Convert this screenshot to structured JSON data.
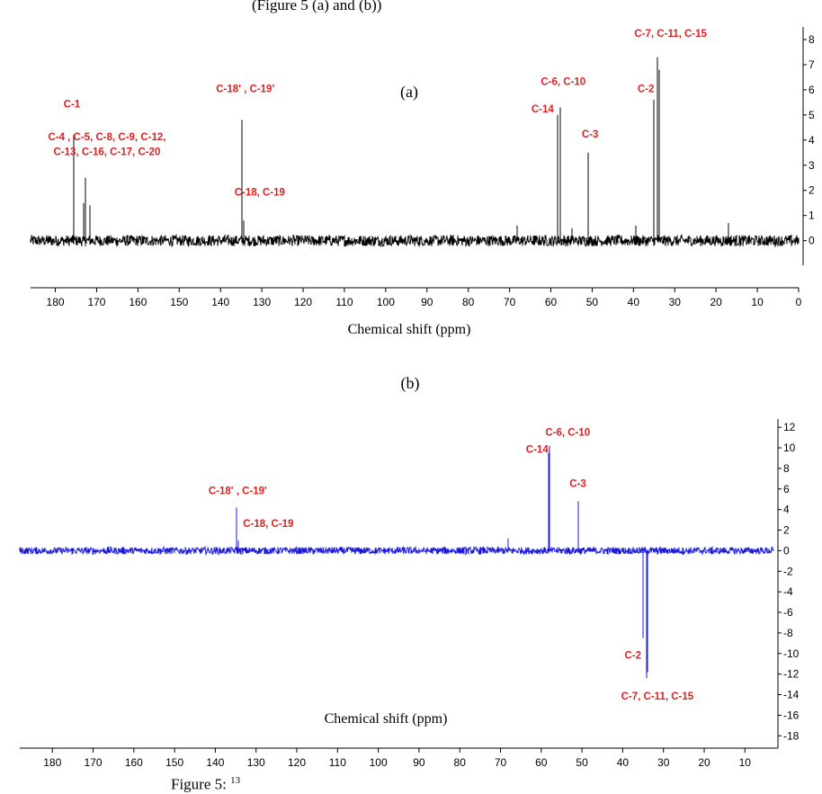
{
  "top_fragment": "(Figure 5 (a) and (b))",
  "bottom_fragment": "Figure 5: ",
  "bottom_fragment_sup": "13",
  "chart_data": [
    {
      "type": "line",
      "panel_label": "(a)",
      "xlabel": "Chemical shift (ppm)",
      "xlim": [
        186,
        0
      ],
      "ylim": [
        -0.8,
        8.5
      ],
      "x_ticks": [
        180,
        170,
        160,
        150,
        140,
        130,
        120,
        110,
        100,
        90,
        80,
        70,
        60,
        50,
        40,
        30,
        20,
        10,
        0
      ],
      "y_ticks": [
        0,
        1,
        2,
        3,
        4,
        5,
        6,
        7,
        8
      ],
      "color": "#000000",
      "noise_amplitude": 0.22,
      "peaks": [
        {
          "x": 175.5,
          "y": 4.2
        },
        {
          "x": 173.2,
          "y": 1.5
        },
        {
          "x": 172.7,
          "y": 2.5
        },
        {
          "x": 171.6,
          "y": 1.4
        },
        {
          "x": 134.8,
          "y": 4.8
        },
        {
          "x": 134.3,
          "y": 0.8
        },
        {
          "x": 68.2,
          "y": 0.6
        },
        {
          "x": 58.3,
          "y": 5.0
        },
        {
          "x": 57.8,
          "y": 5.3
        },
        {
          "x": 54.9,
          "y": 0.5
        },
        {
          "x": 51.0,
          "y": 3.5
        },
        {
          "x": 39.4,
          "y": 0.6
        },
        {
          "x": 35.0,
          "y": 5.6
        },
        {
          "x": 34.2,
          "y": 7.3
        },
        {
          "x": 33.8,
          "y": 6.8
        },
        {
          "x": 16.9,
          "y": 0.7
        }
      ],
      "annotations": [
        {
          "text": "C-1",
          "x": 176,
          "y": 5.3
        },
        {
          "text": "C-4 , C-5, C-8, C-9, C-12,",
          "x": 167.5,
          "y": 4.0
        },
        {
          "text": "C-13, C-16, C-17, C-20",
          "x": 167.5,
          "y": 3.4
        },
        {
          "text": "C-18' , C-19'",
          "x": 134,
          "y": 5.9
        },
        {
          "text": "C-18, C-19",
          "x": 130.5,
          "y": 1.8
        },
        {
          "text": "C-6, C-10",
          "x": 57,
          "y": 6.2
        },
        {
          "text": "C-14",
          "x": 62,
          "y": 5.1
        },
        {
          "text": "C-3",
          "x": 50.5,
          "y": 4.1
        },
        {
          "text": "C-2",
          "x": 37,
          "y": 5.9
        },
        {
          "text": "C-7, C-11, C-15",
          "x": 31,
          "y": 8.1
        }
      ]
    },
    {
      "type": "line",
      "panel_label": "(b)",
      "xlabel": "Chemical shift (ppm)",
      "xlim": [
        188,
        3
      ],
      "ylim": [
        -19.2,
        12.8
      ],
      "x_ticks": [
        180,
        170,
        160,
        150,
        140,
        130,
        120,
        110,
        100,
        90,
        80,
        70,
        60,
        50,
        40,
        30,
        20,
        10
      ],
      "y_ticks": [
        12,
        10,
        8,
        6,
        4,
        2,
        0,
        -2,
        -4,
        -6,
        -8,
        -10,
        -12,
        -14,
        -16,
        -18
      ],
      "color": "#1a1adb",
      "noise_amplitude": 0.35,
      "peaks": [
        {
          "x": 134.8,
          "y": 4.2
        },
        {
          "x": 134.3,
          "y": 1.0
        },
        {
          "x": 68.2,
          "y": 1.2
        },
        {
          "x": 58.3,
          "y": 9.5
        },
        {
          "x": 57.9,
          "y": 10.2
        },
        {
          "x": 51.0,
          "y": 4.8
        },
        {
          "x": 35.0,
          "y": -8.5
        },
        {
          "x": 34.2,
          "y": -12.4
        },
        {
          "x": 33.8,
          "y": -11.8
        }
      ],
      "annotations": [
        {
          "text": "C-18' , C-19'",
          "x": 134.5,
          "y": 5.5
        },
        {
          "text": "C-18, C-19",
          "x": 127,
          "y": 2.3
        },
        {
          "text": "C-6, C-10",
          "x": 53.5,
          "y": 11.2
        },
        {
          "text": "C-14",
          "x": 61,
          "y": 9.5
        },
        {
          "text": "C-3",
          "x": 51,
          "y": 6.2
        },
        {
          "text": "C-2",
          "x": 37.5,
          "y": -10.5
        },
        {
          "text": "C-7, C-11, C-15",
          "x": 31.5,
          "y": -14.5
        }
      ]
    }
  ]
}
